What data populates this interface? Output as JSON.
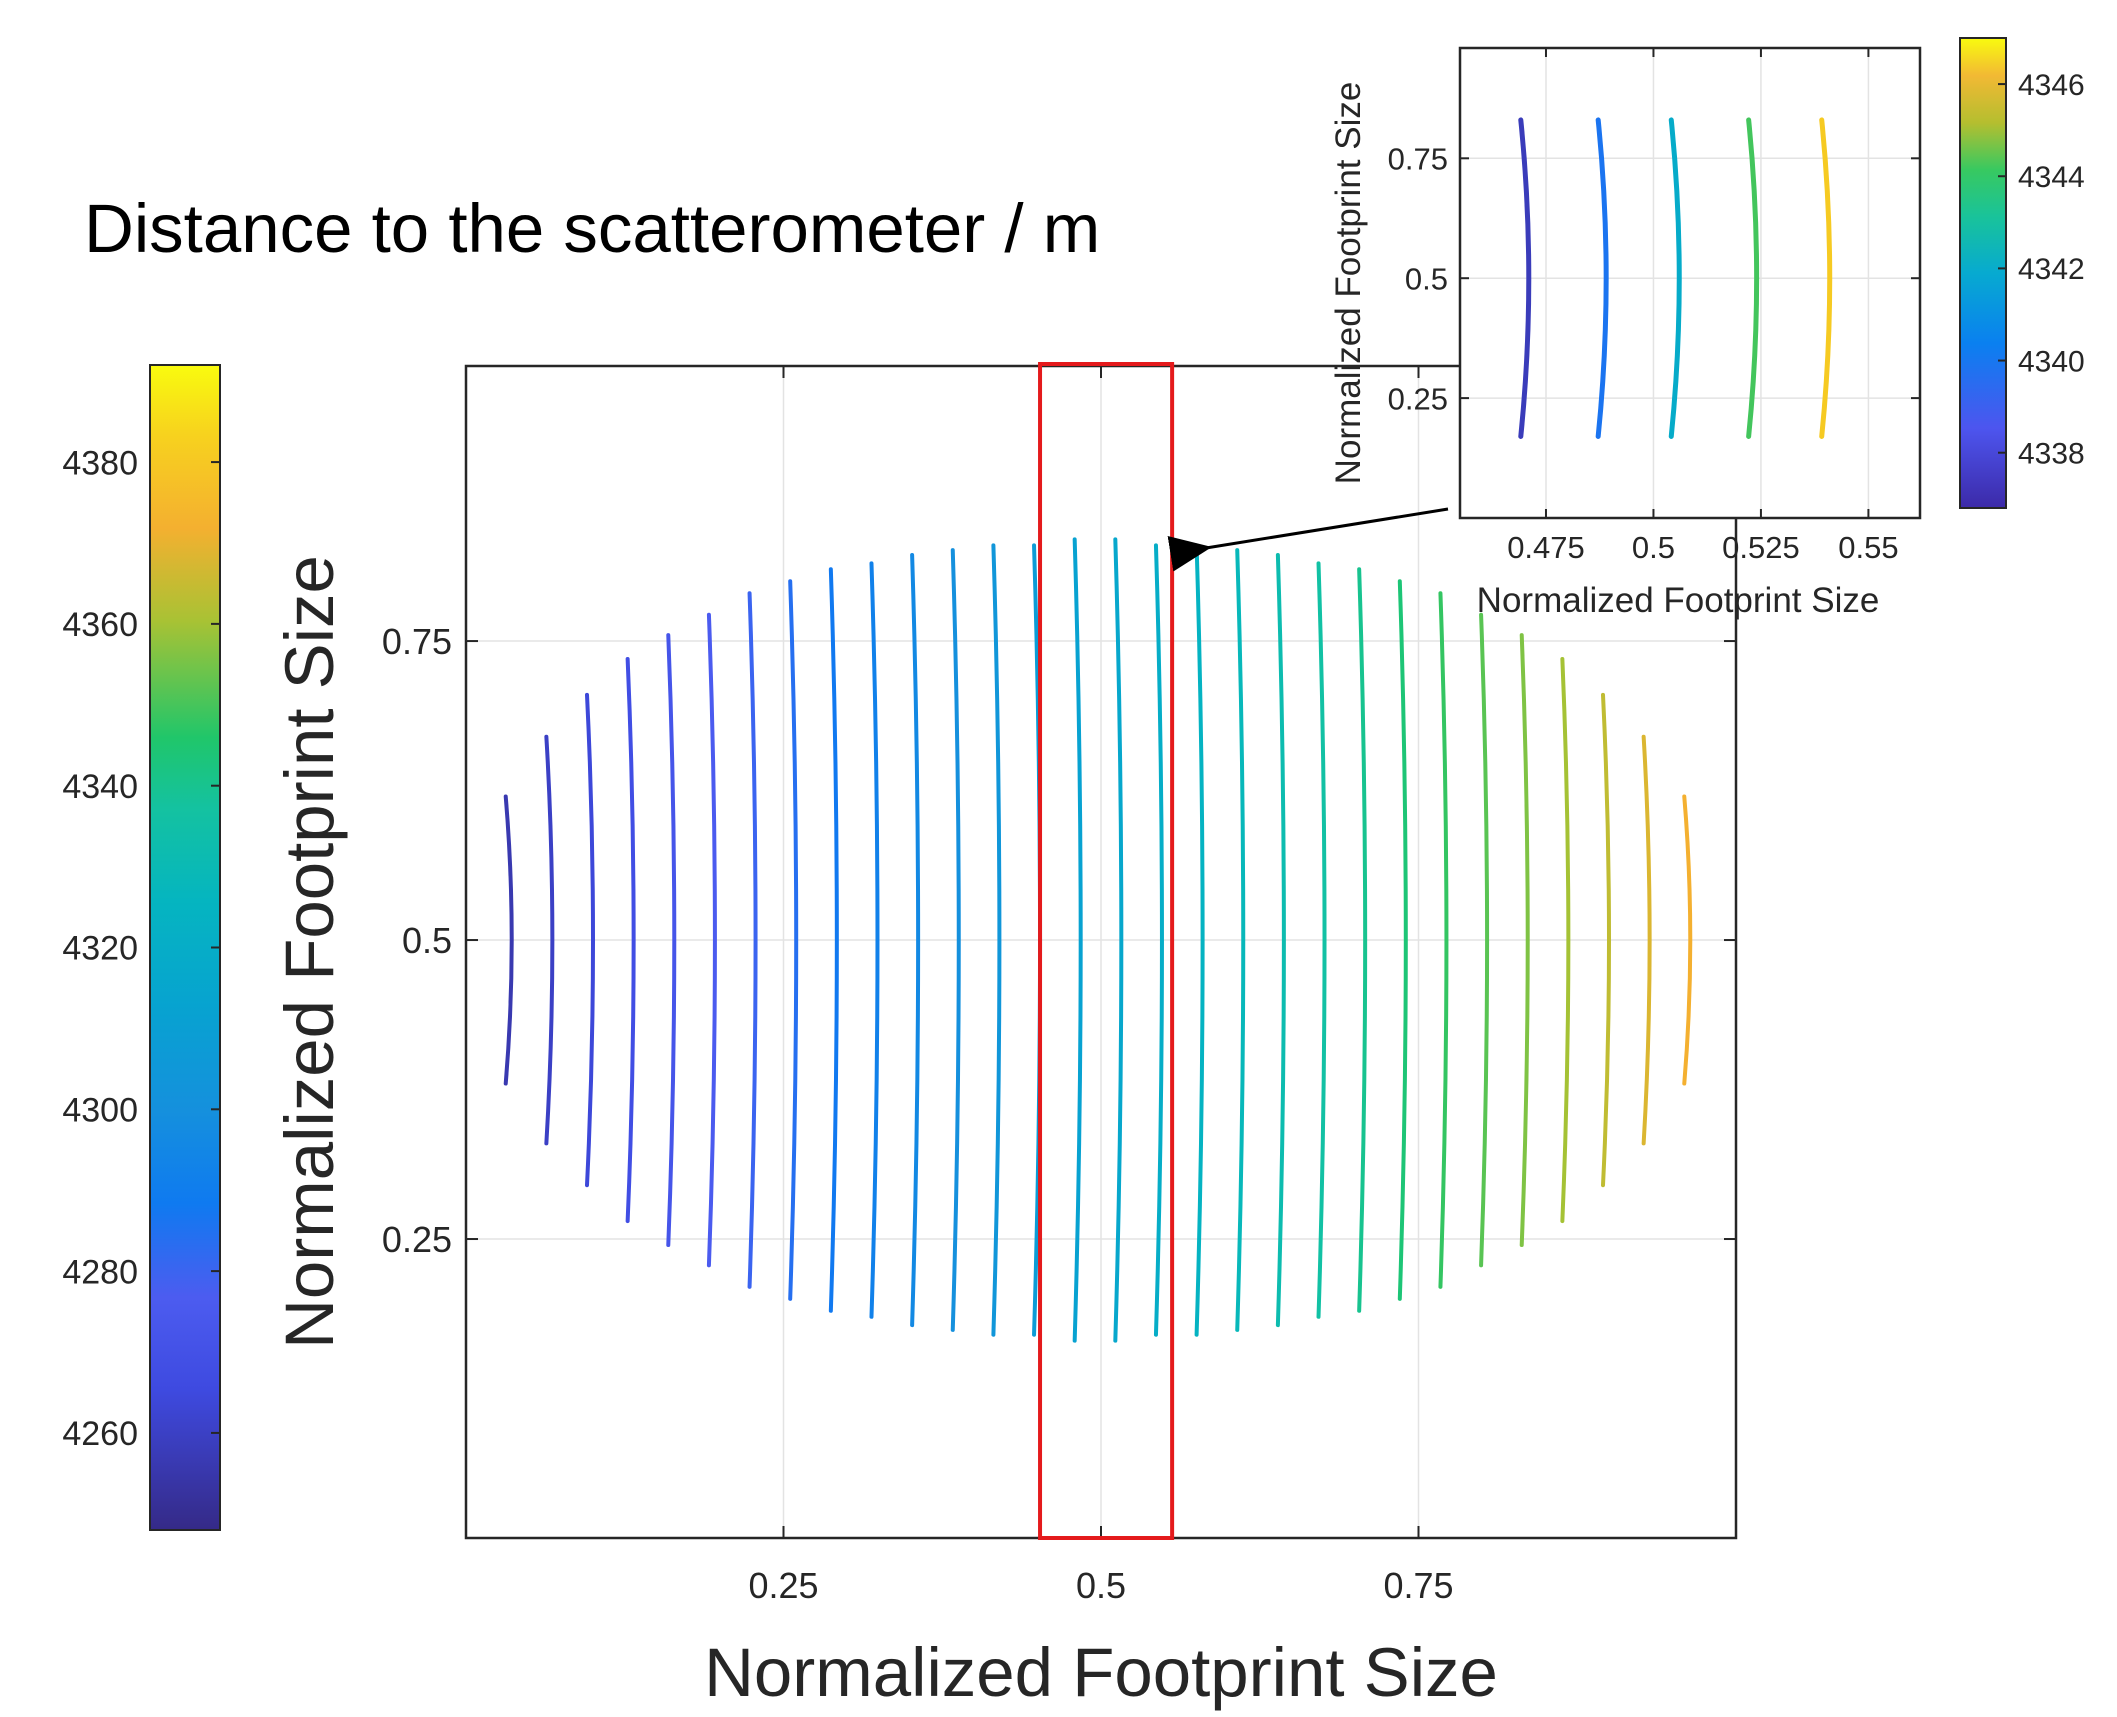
{
  "chart_data": [
    {
      "type": "line",
      "role": "main",
      "title": "Distance to the scatterometer / m",
      "xlabel": "Normalized Footprint Size",
      "ylabel": "Normalized Footprint Size",
      "xlim": [
        0,
        1
      ],
      "ylim": [
        0,
        0.98
      ],
      "xticks": [
        0.25,
        0.5,
        0.75
      ],
      "xtick_labels": [
        "0.25",
        "0.5",
        "0.75"
      ],
      "yticks": [
        0.25,
        0.5,
        0.75
      ],
      "ytick_labels": [
        "0.25",
        "0.5",
        "0.75"
      ],
      "grid": true,
      "series_description": "Each line is one range bin; x is its center position, ymin/ymax its extent",
      "x": [
        0.036,
        0.068,
        0.1,
        0.132,
        0.164,
        0.196,
        0.228,
        0.26,
        0.292,
        0.324,
        0.356,
        0.388,
        0.42,
        0.452,
        0.484,
        0.516,
        0.548,
        0.58,
        0.612,
        0.644,
        0.676,
        0.708,
        0.74,
        0.772,
        0.804,
        0.836,
        0.868,
        0.9,
        0.932,
        0.964
      ],
      "ymin": [
        0.38,
        0.33,
        0.295,
        0.265,
        0.245,
        0.228,
        0.21,
        0.2,
        0.19,
        0.185,
        0.178,
        0.174,
        0.17,
        0.17,
        0.165,
        0.165,
        0.17,
        0.17,
        0.174,
        0.178,
        0.185,
        0.19,
        0.2,
        0.21,
        0.228,
        0.245,
        0.265,
        0.295,
        0.33,
        0.38
      ],
      "ymax": [
        0.62,
        0.67,
        0.705,
        0.735,
        0.755,
        0.772,
        0.79,
        0.8,
        0.81,
        0.815,
        0.822,
        0.826,
        0.83,
        0.83,
        0.835,
        0.835,
        0.83,
        0.83,
        0.826,
        0.822,
        0.815,
        0.81,
        0.8,
        0.79,
        0.772,
        0.755,
        0.735,
        0.705,
        0.67,
        0.62
      ],
      "values": [
        4256,
        4260,
        4264,
        4268,
        4272,
        4276,
        4280,
        4284,
        4288,
        4292,
        4296,
        4300,
        4304,
        4308,
        4312,
        4316,
        4320,
        4324,
        4328,
        4332,
        4336,
        4340,
        4344,
        4348,
        4352,
        4356,
        4360,
        4364,
        4368,
        4372
      ],
      "highlight_box": {
        "x": [
          0.452,
          0.556
        ],
        "y": [
          0,
          0.98
        ]
      },
      "colorbar": {
        "ticks": [
          4260,
          4280,
          4300,
          4320,
          4340,
          4360,
          4380
        ],
        "tick_labels": [
          "4260",
          "4280",
          "4300",
          "4320",
          "4340",
          "4360",
          "4380"
        ],
        "clim": [
          4248,
          4392
        ]
      }
    },
    {
      "type": "line",
      "role": "inset",
      "xlabel": "Normalized Footprint Size",
      "ylabel": "Normalized Footprint Size",
      "xlim": [
        0.455,
        0.562
      ],
      "ylim": [
        0,
        0.98
      ],
      "xticks": [
        0.475,
        0.5,
        0.525,
        0.55
      ],
      "xtick_labels": [
        "0.475",
        "0.5",
        "0.525",
        "0.55"
      ],
      "yticks": [
        0.25,
        0.5,
        0.75
      ],
      "ytick_labels": [
        "0.25",
        "0.5",
        "0.75"
      ],
      "grid": true,
      "x": [
        0.471,
        0.489,
        0.506,
        0.524,
        0.541
      ],
      "ymin": [
        0.17,
        0.17,
        0.17,
        0.17,
        0.17
      ],
      "ymax": [
        0.83,
        0.83,
        0.83,
        0.83,
        0.83
      ],
      "values": [
        4337.5,
        4339.5,
        4341.8,
        4344,
        4346.2
      ],
      "colorbar": {
        "ticks": [
          4338,
          4340,
          4342,
          4344,
          4346
        ],
        "tick_labels": [
          "4338",
          "4340",
          "4342",
          "4344",
          "4346"
        ],
        "clim": [
          4336.8,
          4347
        ]
      }
    }
  ]
}
